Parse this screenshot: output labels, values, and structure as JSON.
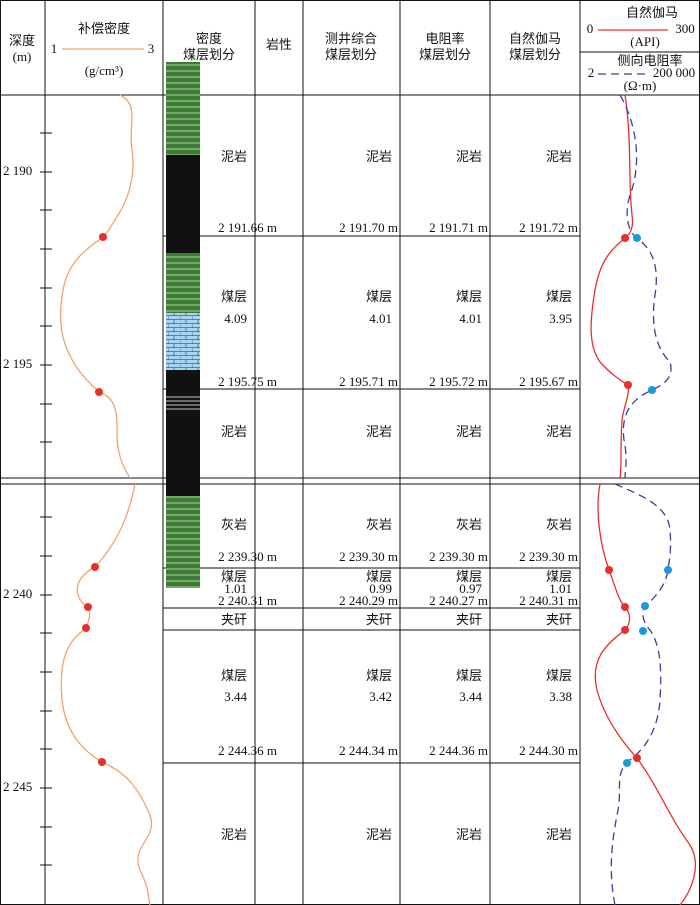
{
  "header": {
    "depth": "深度",
    "depth_unit": "(m)",
    "density_title": "补偿密度",
    "density_min": "1",
    "density_max": "3",
    "density_unit": "(g/cm³)",
    "columns": [
      [
        "密度",
        "煤层划分"
      ],
      [
        "岩性"
      ],
      [
        "测井综合",
        "煤层划分"
      ],
      [
        "电阻率",
        "煤层划分"
      ],
      [
        "自然伽马",
        "煤层划分"
      ]
    ],
    "gr_title": "自然伽马",
    "gr_min": "0",
    "gr_max": "300",
    "gr_unit": "(API)",
    "res_title": "侧向电阻率",
    "res_min": "2",
    "res_max": "200 000",
    "res_unit": "(Ω·m)"
  },
  "sections": [
    {
      "depths": [
        "2 190",
        "2 195"
      ],
      "rows": [
        [
          "泥岩",
          "泥岩",
          "泥岩",
          "泥岩"
        ],
        [
          "2 191.66 m",
          "2 191.70 m",
          "2 191.71 m",
          "2 191.72 m"
        ],
        [
          "煤层",
          "煤层",
          "煤层",
          "煤层"
        ],
        [
          "4.09",
          "4.01",
          "4.01",
          "3.95"
        ],
        [
          "2 195.75 m",
          "2 195.71 m",
          "2 195.72 m",
          "2 195.67 m"
        ],
        [
          "泥岩",
          "泥岩",
          "泥岩",
          "泥岩"
        ]
      ]
    },
    {
      "depths": [
        "2 240",
        "2 245"
      ],
      "rows": [
        [
          "灰岩",
          "灰岩",
          "灰岩",
          "灰岩"
        ],
        [
          "2 239.30 m",
          "2 239.30 m",
          "2 239.30 m",
          "2 239.30 m"
        ],
        [
          "煤层",
          "煤层",
          "煤层",
          "煤层"
        ],
        [
          "1.01",
          "0.99",
          "0.97",
          "1.01"
        ],
        [
          "2 240.31 m",
          "2 240.29 m",
          "2 240.27 m",
          "2 240.31 m"
        ],
        [
          "夹矸",
          "夹矸",
          "夹矸",
          "夹矸"
        ],
        [
          "煤层",
          "煤层",
          "煤层",
          "煤层"
        ],
        [
          "3.44",
          "3.42",
          "3.44",
          "3.38"
        ],
        [
          "2 244.36 m",
          "2 244.34 m",
          "2 244.36 m",
          "2 244.30 m"
        ],
        [
          "泥岩",
          "泥岩",
          "泥岩",
          "泥岩"
        ]
      ]
    }
  ]
}
